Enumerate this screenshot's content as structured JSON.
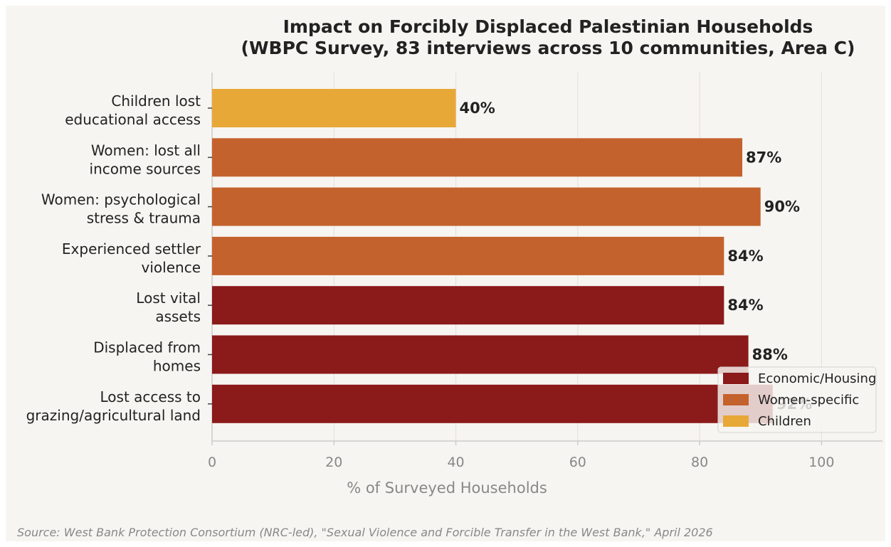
{
  "chart_data": {
    "type": "bar",
    "orientation": "horizontal",
    "title": "Impact on Forcibly Displaced Palestinian Households",
    "subtitle": "(WBPC Survey, 83 interviews across 10 communities, Area C)",
    "xlabel": "% of Surveyed Households",
    "ylabel": "",
    "xlim": [
      0,
      110
    ],
    "xticks": [
      0,
      20,
      40,
      60,
      80,
      100
    ],
    "grid": "vertical",
    "categories": [
      [
        "Children lost",
        "educational access"
      ],
      [
        "Women: lost all",
        "income sources"
      ],
      [
        "Women: psychological",
        "stress & trauma"
      ],
      [
        "Experienced settler",
        "violence"
      ],
      [
        "Lost vital",
        "assets"
      ],
      [
        "Displaced from",
        "homes"
      ],
      [
        "Lost access to",
        "grazing/agricultural land"
      ]
    ],
    "values": [
      40,
      87,
      90,
      84,
      84,
      88,
      92
    ],
    "value_labels": [
      "40%",
      "87%",
      "90%",
      "84%",
      "84%",
      "88%",
      "92%"
    ],
    "groups": [
      "Children",
      "Women-specific",
      "Women-specific",
      "Women-specific",
      "Economic/Housing",
      "Economic/Housing",
      "Economic/Housing"
    ],
    "legend": {
      "placement": "lower-right",
      "entries": [
        {
          "name": "Economic/Housing",
          "color": "#8b1a1a"
        },
        {
          "name": "Women-specific",
          "color": "#c4622d"
        },
        {
          "name": "Children",
          "color": "#e8a838"
        }
      ]
    },
    "source": "Source: West Bank Protection Consortium (NRC-led), \"Sexual Violence and Forcible Transfer in the West Bank,\" April 2026"
  },
  "colors": {
    "background": "#f7f5f1",
    "grid": "#e6e3dd",
    "axis": "#cccccc",
    "text": "#222222",
    "muted": "#888888"
  }
}
